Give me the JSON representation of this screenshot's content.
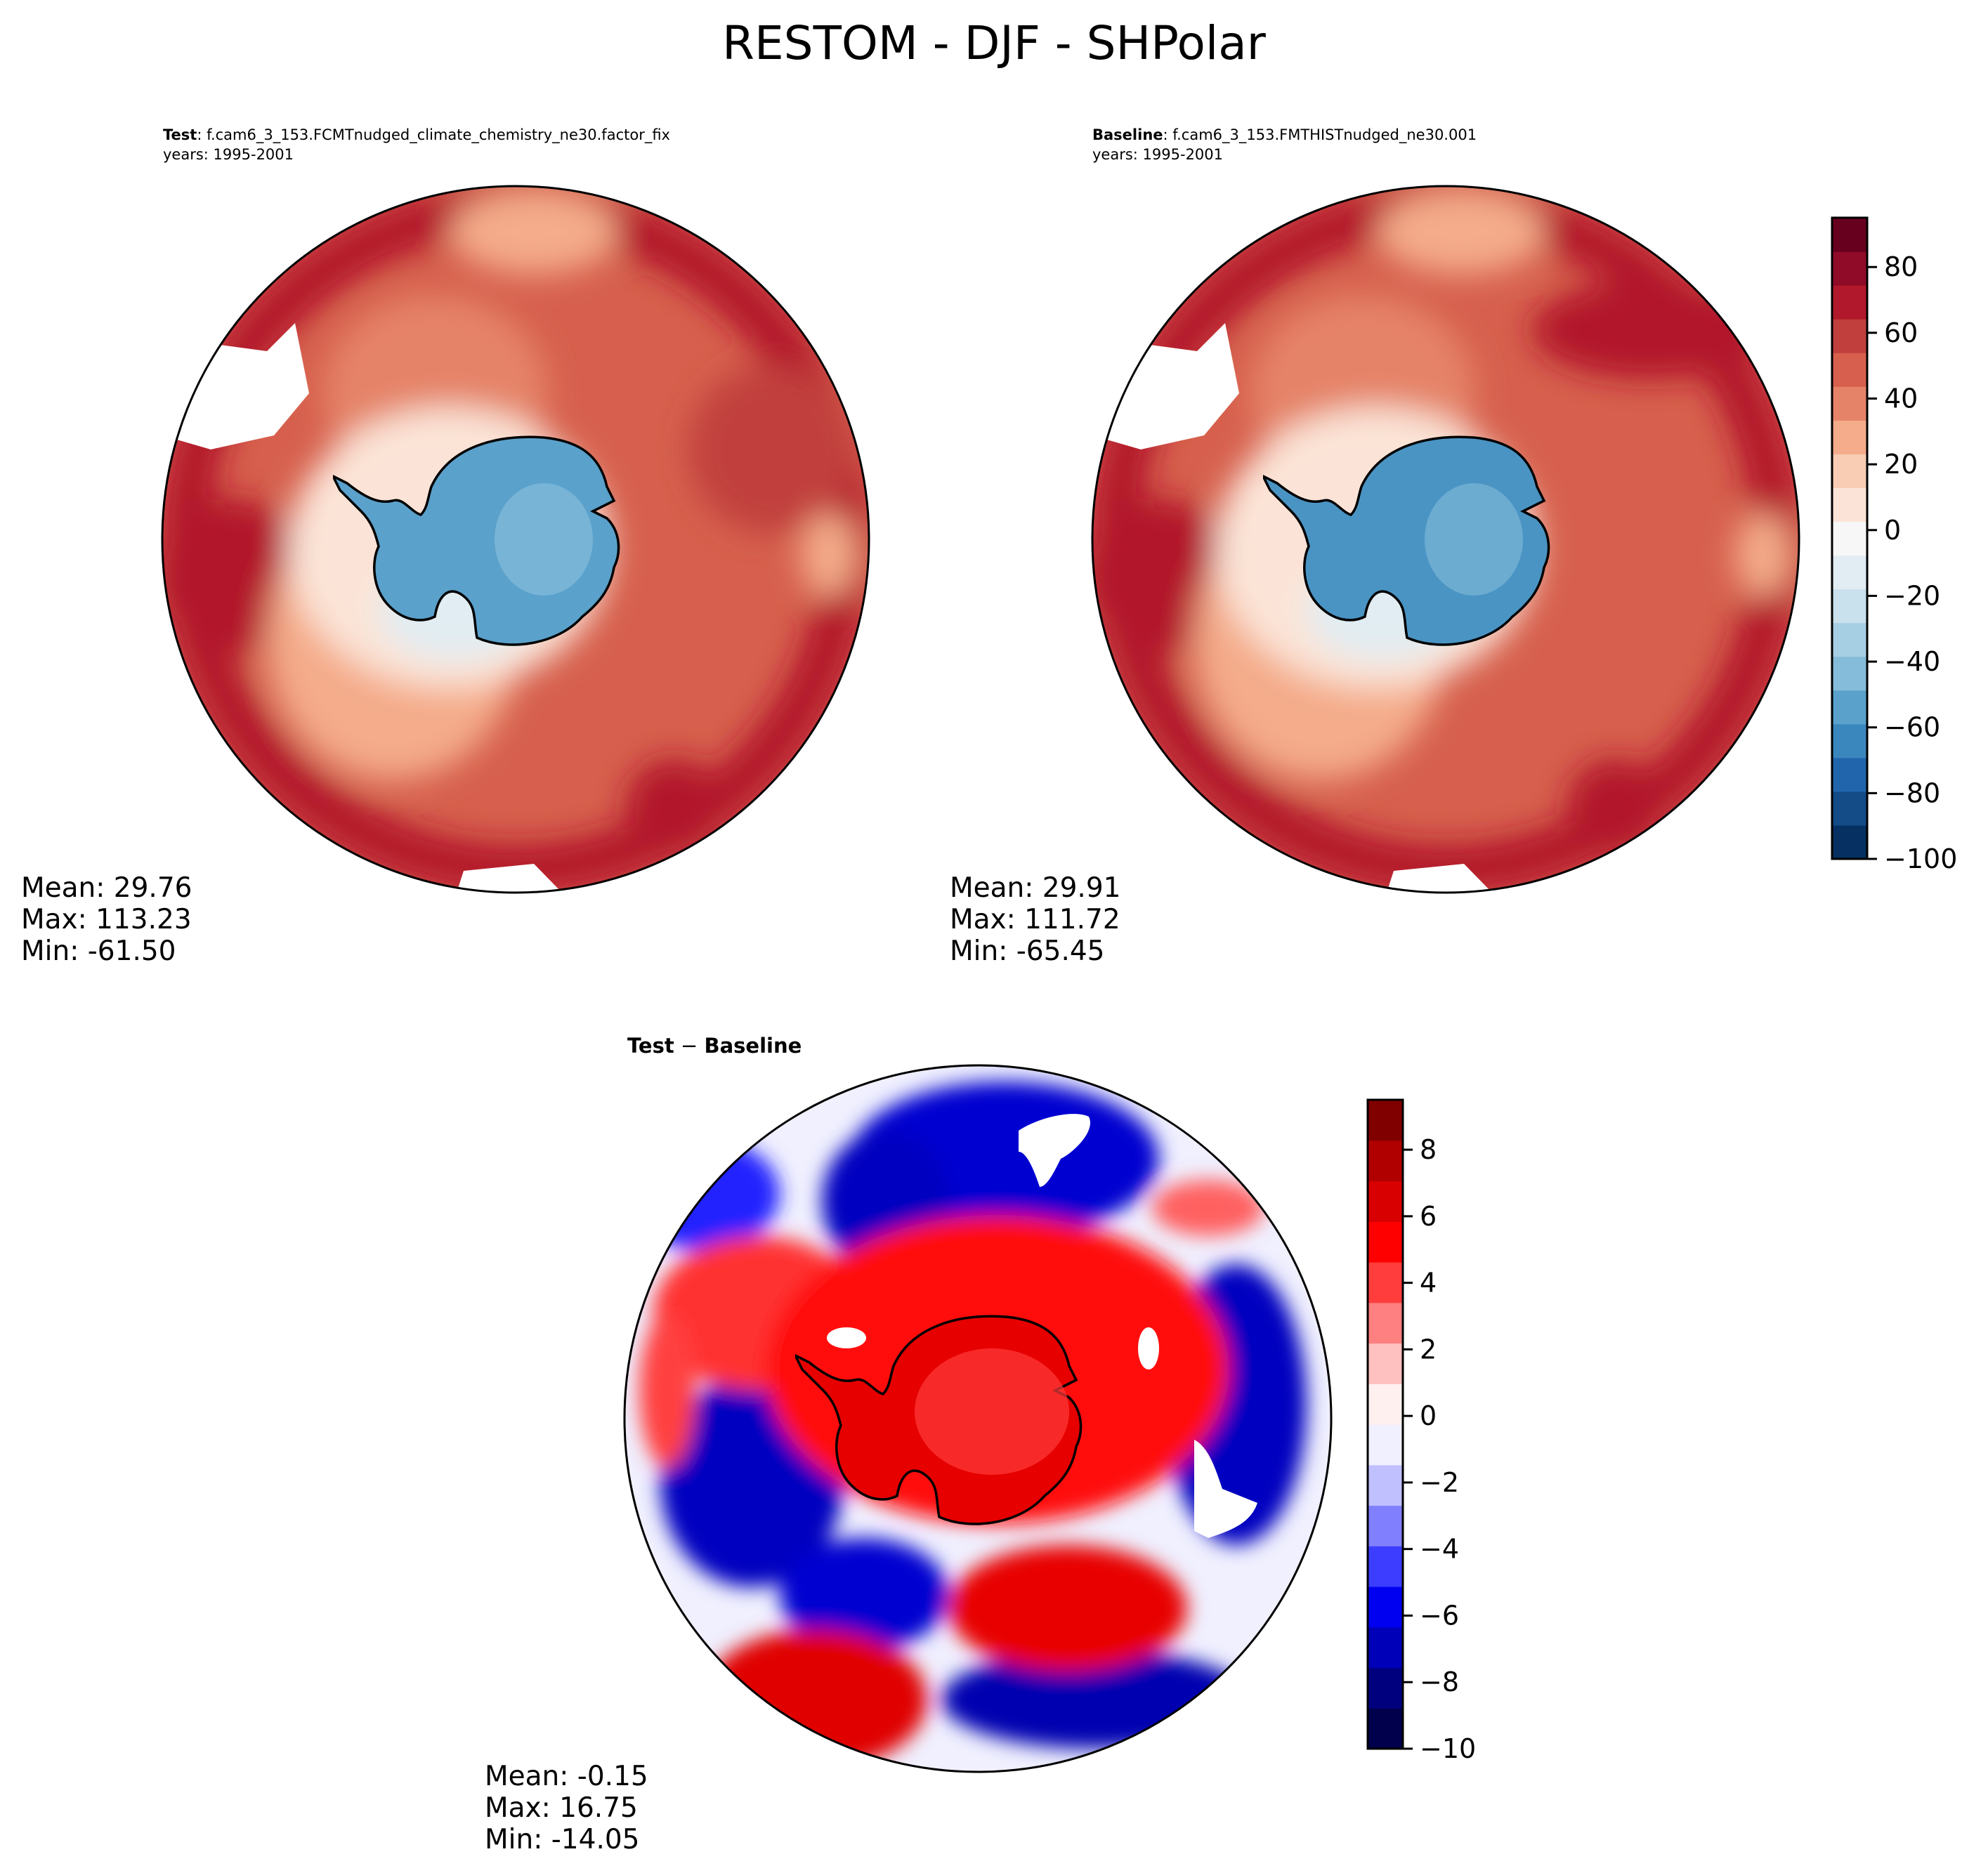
{
  "figure": {
    "title": "RESTOM - DJF - SHPolar"
  },
  "panels": {
    "test": {
      "label": "Test",
      "case": ": f.cam6_3_153.FCMTnudged_climate_chemistry_ne30.factor_fix",
      "years": "years: 1995-2001",
      "stats": {
        "mean": "Mean: 29.76",
        "max": "Max: 113.23",
        "min": "Min: -61.50"
      }
    },
    "baseline": {
      "label": "Baseline",
      "case": ": f.cam6_3_153.FMTHISTnudged_ne30.001",
      "years": "years: 1995-2001",
      "stats": {
        "mean": "Mean: 29.91",
        "max": "Max: 111.72",
        "min": "Min: -65.45"
      }
    },
    "diff": {
      "title_a": "Test",
      "title_op": " − ",
      "title_b": "Baseline",
      "stats": {
        "mean": "Mean: -0.15",
        "max": "Max: 16.75",
        "min": "Min: -14.05"
      }
    }
  },
  "chart_data": [
    {
      "type": "heatmap",
      "projection": "south-polar-stereographic",
      "title": "Test : f.cam6_3_153.FCMTnudged_climate_chemistry_ne30.factor_fix",
      "subtitle": "years: 1995-2001",
      "variable": "RESTOM",
      "season": "DJF",
      "colormap": "RdBu_r",
      "colorbar": {
        "range": [
          -100,
          95
        ],
        "ticks": [
          80,
          60,
          40,
          20,
          0,
          -20,
          -40,
          -60,
          -80,
          -100
        ],
        "tick_labels": [
          "80",
          "60",
          "40",
          "20",
          "0",
          "−20",
          "−40",
          "−60",
          "−80",
          "−100"
        ]
      },
      "stats": {
        "mean": 29.76,
        "max": 113.23,
        "min": -61.5
      },
      "description": "Antarctic continent strongly negative (about -40 to -70); surrounding Southern Ocean positive (about +20 to +90), lightest near Antarctic coast and Weddell/Ross sectors"
    },
    {
      "type": "heatmap",
      "projection": "south-polar-stereographic",
      "title": "Baseline : f.cam6_3_153.FMTHISTnudged_ne30.001",
      "subtitle": "years: 1995-2001",
      "variable": "RESTOM",
      "season": "DJF",
      "colormap": "RdBu_r",
      "colorbar": "shared",
      "stats": {
        "mean": 29.91,
        "max": 111.72,
        "min": -65.45
      },
      "description": "Pattern nearly identical to Test: negative over Antarctica, positive over ocean"
    },
    {
      "type": "heatmap",
      "projection": "south-polar-stereographic",
      "title": "Test − Baseline",
      "variable": "RESTOM difference",
      "season": "DJF",
      "colormap": "seismic",
      "colorbar": {
        "range": [
          -10,
          9.5
        ],
        "ticks": [
          8,
          6,
          4,
          2,
          0,
          -2,
          -4,
          -6,
          -8,
          -10
        ],
        "tick_labels": [
          "8",
          "6",
          "4",
          "2",
          "0",
          "−2",
          "−4",
          "−6",
          "−8",
          "−10"
        ]
      },
      "stats": {
        "mean": -0.15,
        "max": 16.75,
        "min": -14.05
      },
      "description": "Antarctica positive (about +4 to +7); alternating positive and negative bands (about -8 to +8) over the Southern Ocean; white where values exceed the color range"
    }
  ],
  "colorbars": {
    "full": {
      "ticks": [
        {
          "value": 80,
          "label": "80"
        },
        {
          "value": 60,
          "label": "60"
        },
        {
          "value": 40,
          "label": "40"
        },
        {
          "value": 20,
          "label": "20"
        },
        {
          "value": 0,
          "label": "0"
        },
        {
          "value": -20,
          "label": "−20"
        },
        {
          "value": -40,
          "label": "−40"
        },
        {
          "value": -60,
          "label": "−60"
        },
        {
          "value": -80,
          "label": "−80"
        },
        {
          "value": -100,
          "label": "−100"
        }
      ],
      "min": -100,
      "max": 95,
      "colors": [
        "#053061",
        "#134c87",
        "#2166ac",
        "#3a87bd",
        "#5aa1cb",
        "#84bcda",
        "#a7cfe4",
        "#c9e0ed",
        "#e1edf3",
        "#f7f7f7",
        "#fbe4d7",
        "#f9cdb4",
        "#f4ac8a",
        "#e58368",
        "#d6604d",
        "#c13f3c",
        "#b2182b",
        "#8f0b28",
        "#67001f"
      ]
    },
    "diff": {
      "ticks": [
        {
          "value": 8,
          "label": "8"
        },
        {
          "value": 6,
          "label": "6"
        },
        {
          "value": 4,
          "label": "4"
        },
        {
          "value": 2,
          "label": "2"
        },
        {
          "value": 0,
          "label": "0"
        },
        {
          "value": -2,
          "label": "−2"
        },
        {
          "value": -4,
          "label": "−4"
        },
        {
          "value": -6,
          "label": "−6"
        },
        {
          "value": -8,
          "label": "−8"
        },
        {
          "value": -10,
          "label": "−10"
        }
      ],
      "min": -10,
      "max": 9.5,
      "colors": [
        "#00004c",
        "#00007f",
        "#0000b8",
        "#0000f0",
        "#3d3dff",
        "#8080ff",
        "#c0c0ff",
        "#f0f0ff",
        "#fff0f0",
        "#ffc0c0",
        "#ff8080",
        "#ff3d3d",
        "#ff0000",
        "#d80000",
        "#b00000",
        "#800000"
      ]
    }
  }
}
